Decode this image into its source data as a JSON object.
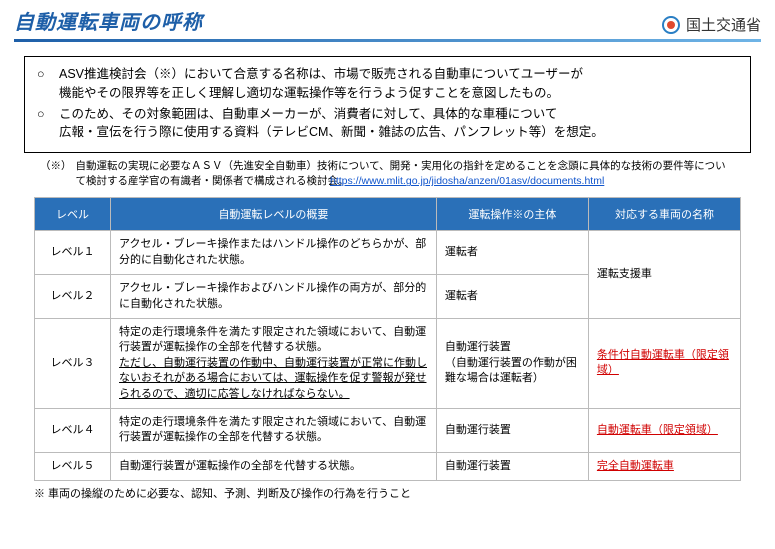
{
  "header": {
    "title": "自動運転車両の呼称",
    "ministry": "国土交通省"
  },
  "intro": {
    "bullet1": "○",
    "text1a": "ASV推進検討会（※）において合意する名称は、市場で販売される自動車についてユーザーが",
    "text1b": "機能やその限界等を正しく理解し適切な運転操作等を行うよう促すことを意図したもの。",
    "bullet2": "○",
    "text2a": "このため、その対象範囲は、自動車メーカーが、消費者に対して、具体的な車種について",
    "text2b": "広報・宣伝を行う際に使用する資料（テレビCM、新聞・雑誌の広告、パンフレット等）を想定。"
  },
  "note": {
    "marker": "（※）",
    "text": "自動運転の実現に必要なＡＳＶ（先進安全自動車）技術について、開発・実用化の指針を定めることを念頭に具体的な技術の要件等について検討する産学官の有識者・関係者で構成される検討会。",
    "link": "https://www.mlit.go.jp/jidosha/anzen/01asv/documents.html"
  },
  "table": {
    "headers": {
      "level": "レベル",
      "desc": "自動運転レベルの概要",
      "subj": "運転操作※の主体",
      "name": "対応する車両の名称"
    },
    "rows": {
      "l1": {
        "level": "レベル１",
        "desc": "アクセル・ブレーキ操作またはハンドル操作のどちらかが、部分的に自動化された状態。",
        "subj": "運転者"
      },
      "l2": {
        "level": "レベル２",
        "desc": "アクセル・ブレーキ操作およびハンドル操作の両方が、部分的に自動化された状態。",
        "subj": "運転者"
      },
      "name12": "運転支援車",
      "l3": {
        "level": "レベル３",
        "desc_a": "特定の走行環境条件を満たす限定された領域において、自動運行装置が運転操作の全部を代替する状態。",
        "desc_b": "ただし、自動運行装置の作動中、自動運行装置が正常に作動しないおそれがある場合においては、運転操作を促す警報が発せられるので、適切に応答しなければならない。",
        "subj": "自動運行装置\n（自動運行装置の作動が困難な場合は運転者）",
        "name": "条件付自動運転車（限定領域）"
      },
      "l4": {
        "level": "レベル４",
        "desc": "特定の走行環境条件を満たす限定された領域において、自動運行装置が運転操作の全部を代替する状態。",
        "subj": "自動運行装置",
        "name": "自動運転車（限定領域）"
      },
      "l5": {
        "level": "レベル５",
        "desc": "自動運行装置が運転操作の全部を代替する状態。",
        "subj": "自動運行装置",
        "name": "完全自動運転車"
      }
    }
  },
  "footnote": "※ 車両の操縦のために必要な、認知、予測、判断及び操作の行為を行うこと",
  "colors": {
    "title": "#1e5fa8",
    "header_bg": "#2a70b8",
    "red": "#d00000",
    "link": "#1155cc",
    "border": "#bbbbbb"
  }
}
